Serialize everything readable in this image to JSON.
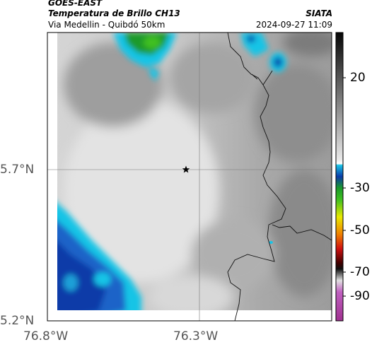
{
  "header": {
    "satellite": "GOES-EAST",
    "product": "Temperatura de Brillo CH13",
    "location": "Via Medellin - Quibdó 50km",
    "source": "SIATA",
    "datetime": "2024-09-27 11:09"
  },
  "map": {
    "lat_ticks": [
      "5.7°N",
      "5.2°N"
    ],
    "lon_ticks": [
      "76.8°W",
      "76.3°W"
    ],
    "marker": "star-icon",
    "colors": {
      "cloud_cold_blue": "#0a3aa8",
      "cloud_cyan": "#19c4e6",
      "cloud_green": "#1a9a2a",
      "background_gray": "#b8b8b8"
    }
  },
  "colorbar": {
    "ticks": [
      "20",
      "-30",
      "-50",
      "-70",
      "-90"
    ]
  }
}
